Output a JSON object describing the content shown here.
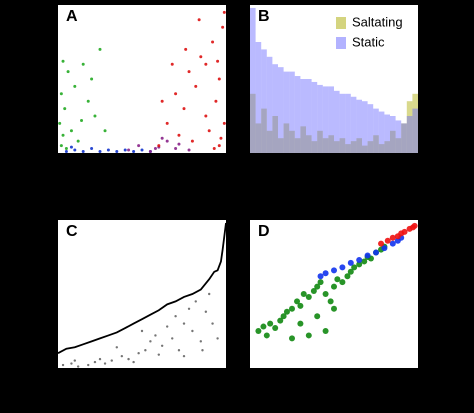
{
  "chart_data": [
    {
      "type": "scatter",
      "label": "A",
      "xlim": [
        0,
        100
      ],
      "ylim": [
        0,
        100
      ],
      "series": [
        {
          "color": "#22aa22",
          "x": [
            2,
            3,
            1,
            4,
            2,
            6,
            10,
            15,
            18,
            22,
            25,
            8,
            12,
            5,
            20,
            3,
            14,
            28
          ],
          "values": [
            5,
            12,
            20,
            30,
            40,
            55,
            45,
            60,
            35,
            25,
            70,
            15,
            8,
            3,
            50,
            62,
            22,
            15
          ]
        },
        {
          "color": "#1133cc",
          "x": [
            5,
            10,
            15,
            20,
            25,
            30,
            35,
            40,
            45,
            50,
            8,
            55
          ],
          "values": [
            1,
            2,
            1,
            3,
            1,
            2,
            1,
            2,
            1,
            2,
            4,
            1
          ]
        },
        {
          "color": "#882288",
          "x": [
            42,
            48,
            55,
            60,
            65,
            70,
            72,
            78,
            62,
            58
          ],
          "values": [
            2,
            5,
            1,
            4,
            8,
            3,
            6,
            2,
            10,
            3
          ]
        },
        {
          "color": "#dd1111",
          "x": [
            60,
            65,
            70,
            72,
            75,
            78,
            80,
            82,
            85,
            88,
            90,
            92,
            94,
            96,
            97,
            98,
            99,
            96,
            93,
            88,
            76,
            68,
            62,
            84,
            99,
            95
          ],
          "values": [
            5,
            20,
            40,
            12,
            30,
            55,
            8,
            45,
            65,
            25,
            15,
            75,
            35,
            50,
            10,
            85,
            20,
            5,
            3,
            60,
            70,
            60,
            35,
            90,
            95,
            62
          ]
        }
      ]
    },
    {
      "type": "histogram",
      "label": "B",
      "xlim": [
        0,
        30
      ],
      "ylim": [
        0,
        100
      ],
      "legend": "upper right",
      "bins": [
        0,
        1,
        2,
        3,
        4,
        5,
        6,
        7,
        8,
        9,
        10,
        11,
        12,
        13,
        14,
        15,
        16,
        17,
        18,
        19,
        20,
        21,
        22,
        23,
        24,
        25,
        26,
        27,
        28,
        29,
        30
      ],
      "series": [
        {
          "name": "Saltating",
          "color": "#aaaa00",
          "values": [
            40,
            20,
            30,
            15,
            25,
            10,
            20,
            15,
            10,
            18,
            12,
            8,
            15,
            10,
            12,
            8,
            10,
            6,
            8,
            10,
            5,
            8,
            12,
            6,
            8,
            15,
            10,
            20,
            35,
            40
          ]
        },
        {
          "name": "Static",
          "color": "#6666ff",
          "values": [
            98,
            75,
            70,
            65,
            60,
            58,
            55,
            55,
            52,
            50,
            50,
            48,
            46,
            45,
            45,
            42,
            40,
            40,
            38,
            36,
            35,
            33,
            30,
            28,
            26,
            25,
            22,
            20,
            25,
            30
          ]
        }
      ]
    },
    {
      "type": "line",
      "label": "C",
      "xlim": [
        0,
        100
      ],
      "ylim": [
        0,
        100
      ],
      "series": [
        {
          "style": "line",
          "color": "#000000",
          "x": [
            0,
            5,
            10,
            15,
            20,
            25,
            30,
            35,
            40,
            45,
            50,
            55,
            60,
            65,
            70,
            75,
            80,
            85,
            90,
            93,
            95,
            97,
            98,
            100
          ],
          "values": [
            10,
            13,
            14,
            16,
            18,
            20,
            22,
            24,
            27,
            30,
            33,
            36,
            39,
            43,
            45,
            48,
            50,
            53,
            60,
            65,
            66,
            72,
            80,
            98
          ]
        },
        {
          "style": "points",
          "color": "#666666",
          "x": [
            3,
            8,
            12,
            18,
            22,
            28,
            32,
            38,
            42,
            48,
            52,
            55,
            58,
            62,
            65,
            68,
            70,
            72,
            75,
            78,
            80,
            82,
            85,
            88,
            90,
            92,
            95,
            10,
            25,
            45,
            60,
            75,
            86,
            35,
            50
          ],
          "values": [
            2,
            3,
            1,
            2,
            4,
            3,
            5,
            8,
            6,
            10,
            12,
            18,
            22,
            15,
            28,
            20,
            35,
            12,
            30,
            40,
            25,
            45,
            18,
            38,
            50,
            30,
            20,
            5,
            6,
            4,
            9,
            8,
            12,
            14,
            25
          ]
        }
      ]
    },
    {
      "type": "scatter",
      "label": "D",
      "xlim": [
        0,
        100
      ],
      "ylim": [
        0,
        100
      ],
      "marker": 3,
      "series": [
        {
          "color": "#118811",
          "x": [
            5,
            8,
            10,
            12,
            15,
            18,
            20,
            22,
            25,
            28,
            30,
            32,
            35,
            38,
            40,
            42,
            45,
            48,
            50,
            52,
            55,
            58,
            60,
            62,
            65,
            68,
            70,
            72,
            75,
            78,
            80,
            30,
            40,
            50,
            35,
            25,
            45
          ],
          "values": [
            25,
            28,
            22,
            30,
            27,
            32,
            35,
            38,
            40,
            45,
            42,
            50,
            48,
            52,
            55,
            58,
            50,
            45,
            55,
            60,
            58,
            62,
            65,
            68,
            70,
            72,
            75,
            74,
            78,
            80,
            82,
            30,
            35,
            40,
            22,
            20,
            25
          ]
        },
        {
          "color": "#1133ee",
          "x": [
            42,
            45,
            50,
            55,
            60,
            65,
            70,
            75,
            80,
            85,
            88,
            90
          ],
          "values": [
            62,
            64,
            66,
            68,
            71,
            73,
            76,
            78,
            81,
            84,
            86,
            88
          ]
        },
        {
          "color": "#ee1111",
          "x": [
            78,
            82,
            85,
            88,
            90,
            92,
            95,
            97,
            98
          ],
          "values": [
            84,
            86,
            88,
            89,
            91,
            92,
            94,
            95,
            96
          ]
        }
      ]
    }
  ]
}
